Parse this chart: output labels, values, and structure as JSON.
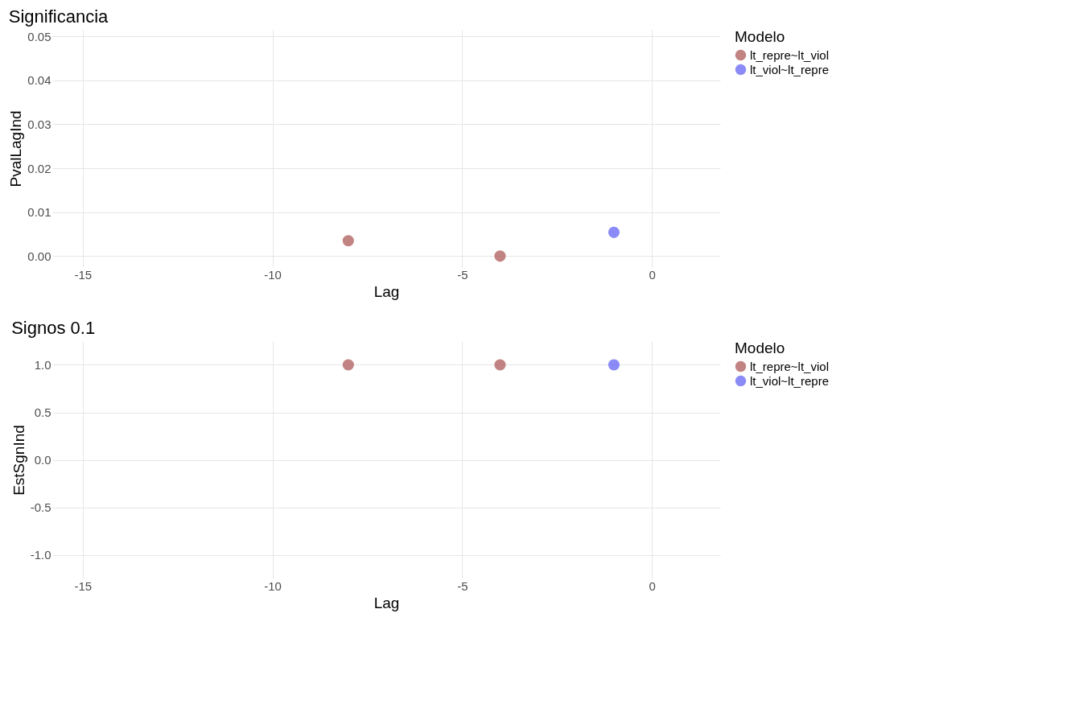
{
  "chart_data": [
    {
      "type": "scatter",
      "title": "Significancia",
      "xlabel": "Lag",
      "ylabel": "PvalLagInd",
      "legend_title": "Modelo",
      "legend": "right",
      "grid": true,
      "marker": "circle",
      "xlim": [
        -15.8,
        1.8
      ],
      "xticks": [
        -15,
        -10,
        -5,
        0
      ],
      "ylim": [
        -0.0025,
        0.0515
      ],
      "yticks": [
        {
          "value": 0,
          "label": "0.00"
        },
        {
          "value": 0.01,
          "label": "0.01"
        },
        {
          "value": 0.02,
          "label": "0.02"
        },
        {
          "value": 0.03,
          "label": "0.03"
        },
        {
          "value": 0.04,
          "label": "0.04"
        },
        {
          "value": 0.05,
          "label": "0.05"
        }
      ],
      "series": [
        {
          "name": "lt_repre~lt_viol",
          "color": "#b36464",
          "x": [
            -8,
            -4
          ],
          "values": [
            0.0035,
            0.0
          ]
        },
        {
          "name": "lt_viol~lt_repre",
          "color": "#6e6ef5",
          "x": [
            -1
          ],
          "values": [
            0.0054
          ]
        }
      ]
    },
    {
      "type": "scatter",
      "title": "Signos 0.1",
      "xlabel": "Lag",
      "ylabel": "EstSgnInd",
      "legend_title": "Modelo",
      "legend": "right",
      "grid": true,
      "marker": "circle",
      "xlim": [
        -15.8,
        1.8
      ],
      "xticks": [
        -15,
        -10,
        -5,
        0
      ],
      "ylim": [
        -1.25,
        1.25
      ],
      "yticks": [
        {
          "value": -1,
          "label": "-1.0"
        },
        {
          "value": -0.5,
          "label": "-0.5"
        },
        {
          "value": 0,
          "label": "0.0"
        },
        {
          "value": 0.5,
          "label": "0.5"
        },
        {
          "value": 1,
          "label": "1.0"
        }
      ],
      "series": [
        {
          "name": "lt_repre~lt_viol",
          "color": "#b36464",
          "x": [
            -8,
            -4
          ],
          "values": [
            1,
            1
          ]
        },
        {
          "name": "lt_viol~lt_repre",
          "color": "#6e6ef5",
          "x": [
            -1
          ],
          "values": [
            1
          ]
        }
      ]
    }
  ]
}
